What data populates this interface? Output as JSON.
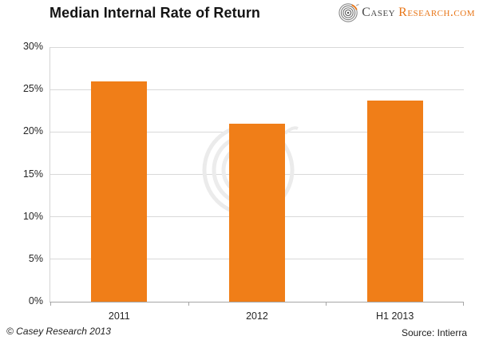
{
  "title": "Median Internal Rate of Return",
  "logo": {
    "casey": "Casey",
    "research": "Research.com",
    "icon": "casey-research-spiral-icon"
  },
  "footer": {
    "copyright": "© Casey Research 2013",
    "source": "Source: Intierra"
  },
  "colors": {
    "bar_orange": "#F07E18",
    "logo_orange": "#E87618",
    "logo_gray": "#4a4a4a",
    "gridline": "#D9D9D9",
    "axis": "#A6A6A6",
    "label_text": "#262626",
    "watermark": "#EBEBEB"
  },
  "chart_data": {
    "type": "bar",
    "title": "Median Internal Rate of Return",
    "categories": [
      "2011",
      "2012",
      "H1 2013"
    ],
    "values": [
      26,
      21,
      23.7
    ],
    "xlabel": "",
    "ylabel": "",
    "ylim": [
      0,
      30
    ],
    "ytick_values": [
      0,
      5,
      10,
      15,
      20,
      25,
      30
    ],
    "ytick_labels": [
      "0%",
      "5%",
      "10%",
      "15%",
      "20%",
      "25%",
      "30%"
    ],
    "grid": true,
    "legend": false,
    "bar_color": "#F07E18",
    "annotation": "Source: Intierra"
  }
}
